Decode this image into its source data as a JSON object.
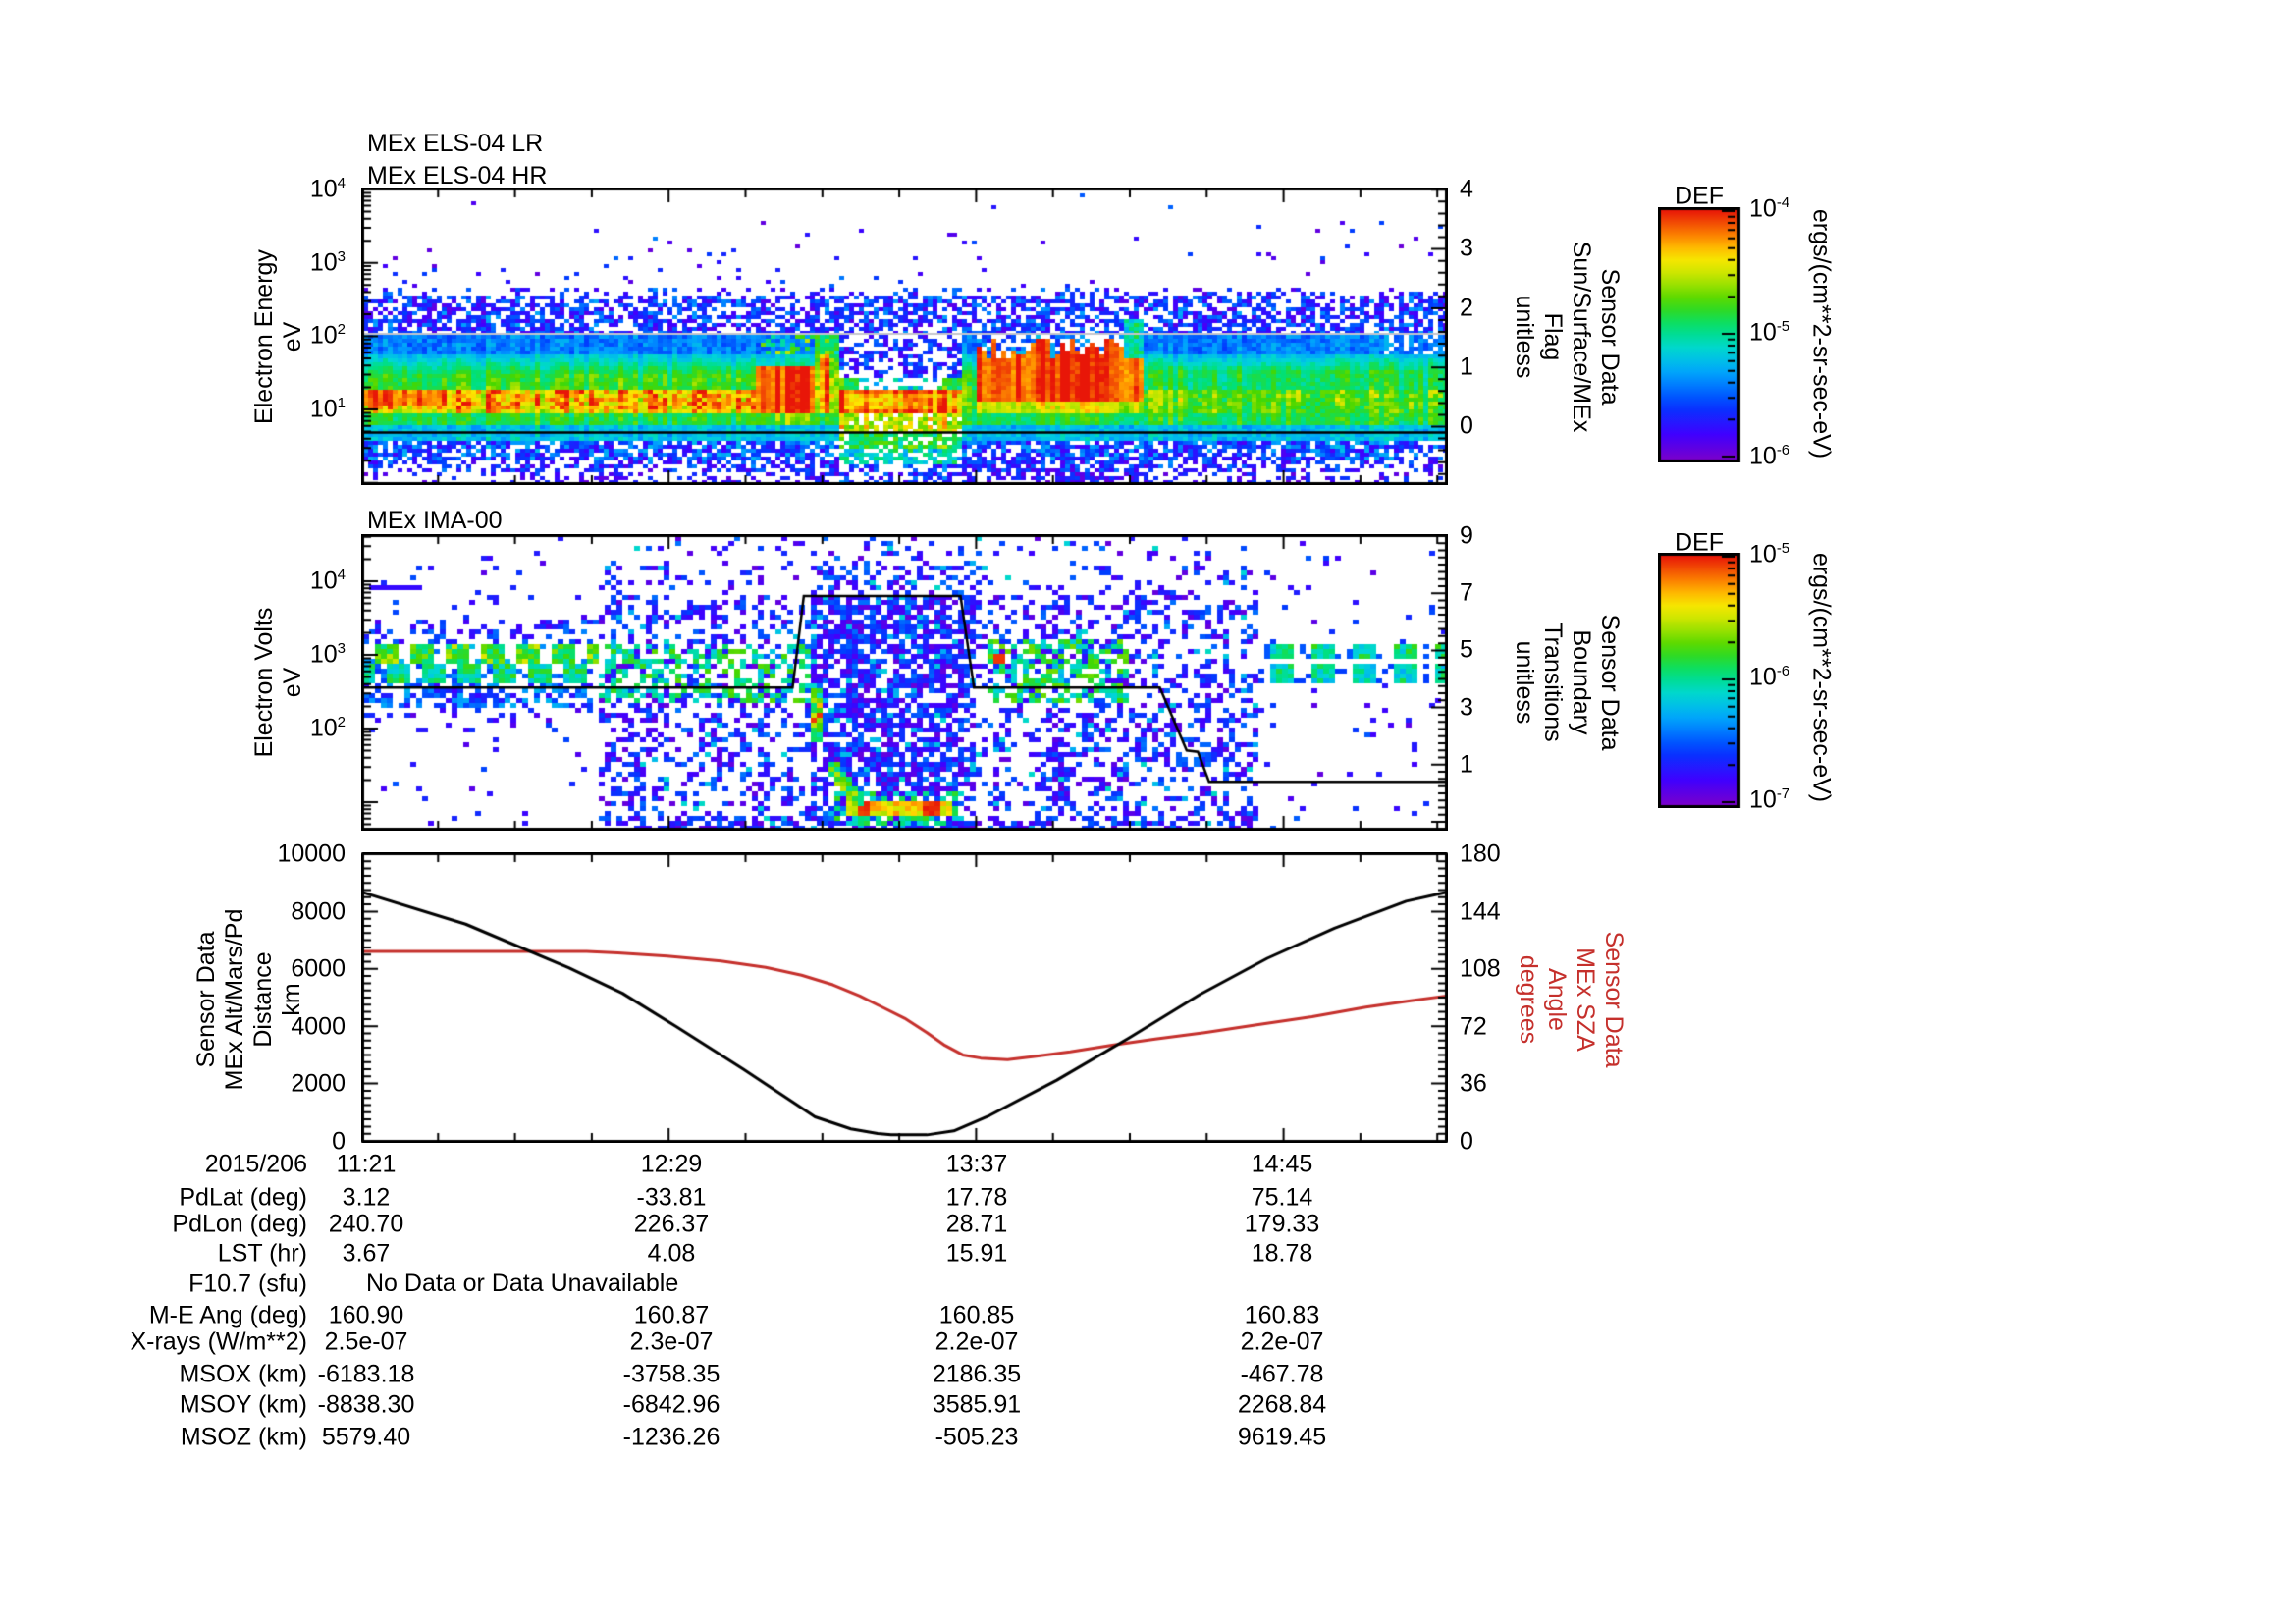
{
  "colors": {
    "accent_red": "#c5302c",
    "curve_black": "#000000",
    "grey_line": "#c4c4cc",
    "frame": "#000000"
  },
  "panels": {
    "els": {
      "titles": [
        "MEx ELS-04 LR",
        "MEx ELS-04 HR"
      ],
      "ylabel_lines": [
        "Electron Energy",
        "eV"
      ],
      "yticks": [
        {
          "b": "10",
          "e": "4"
        },
        {
          "b": "10",
          "e": "3"
        },
        {
          "b": "10",
          "e": "2"
        },
        {
          "b": "10",
          "e": "1"
        }
      ],
      "right_label_lines": [
        "Sensor Data",
        "Sun/Surface/MEx",
        "Flag",
        "unitless"
      ],
      "right_ticks": [
        "4",
        "3",
        "2",
        "1",
        "0"
      ]
    },
    "ima": {
      "title": "MEx IMA-00",
      "ylabel_lines": [
        "Electron Volts",
        "eV"
      ],
      "yticks": [
        {
          "b": "10",
          "e": "4"
        },
        {
          "b": "10",
          "e": "3"
        },
        {
          "b": "10",
          "e": "2"
        }
      ],
      "right_label_lines": [
        "Sensor Data",
        "Boundary",
        "Transitions",
        "unitless"
      ],
      "right_ticks": [
        "9",
        "7",
        "5",
        "3",
        "1"
      ]
    },
    "orbit": {
      "ylabel_lines": [
        "Sensor Data",
        "MEx Alt/Mars/Pd",
        "Distance",
        "km"
      ],
      "yticks": [
        "10000",
        "8000",
        "6000",
        "4000",
        "2000",
        "0"
      ],
      "right_label_lines": [
        "Sensor Data",
        "MEx SZA",
        "Angle",
        "degrees"
      ],
      "right_ticks": [
        "180",
        "144",
        "108",
        "72",
        "36",
        "0"
      ]
    }
  },
  "colorbars": [
    {
      "title": "DEF",
      "units": "ergs/(cm**2-sr-sec-eV)",
      "ticks": [
        {
          "b": "10",
          "e": "-4"
        },
        {
          "b": "10",
          "e": "-5"
        },
        {
          "b": "10",
          "e": "-6"
        }
      ]
    },
    {
      "title": "DEF",
      "units": "ergs/(cm**2-sr-sec-eV)",
      "ticks": [
        {
          "b": "10",
          "e": "-5"
        },
        {
          "b": "10",
          "e": "-6"
        },
        {
          "b": "10",
          "e": "-7"
        }
      ]
    }
  ],
  "xaxis": {
    "date": "2015/206",
    "time_labels": [
      "11:21",
      "12:29",
      "13:37",
      "14:45"
    ]
  },
  "table": {
    "no_data_text": "No Data or Data Unavailable",
    "rows": [
      {
        "label": "PdLat (deg)",
        "values": [
          "3.12",
          "-33.81",
          "17.78",
          "75.14"
        ]
      },
      {
        "label": "PdLon (deg)",
        "values": [
          "240.70",
          "226.37",
          "28.71",
          "179.33"
        ]
      },
      {
        "label": "LST (hr)",
        "values": [
          "3.67",
          "4.08",
          "15.91",
          "18.78"
        ]
      },
      {
        "label": "F10.7 (sfu)",
        "values": null
      },
      {
        "label": "M-E Ang (deg)",
        "values": [
          "160.90",
          "160.87",
          "160.85",
          "160.83"
        ]
      },
      {
        "label": "X-rays (W/m**2)",
        "values": [
          "2.5e-07",
          "2.3e-07",
          "2.2e-07",
          "2.2e-07"
        ]
      },
      {
        "label": "MSOX (km)",
        "values": [
          "-6183.18",
          "-3758.35",
          "2186.35",
          "-467.78"
        ]
      },
      {
        "label": "MSOY (km)",
        "values": [
          "-8838.30",
          "-6842.96",
          "3585.91",
          "2268.84"
        ]
      },
      {
        "label": "MSOZ (km)",
        "values": [
          "5579.40",
          "-1236.26",
          "-505.23",
          "9619.45"
        ]
      }
    ]
  },
  "chart_data": [
    {
      "type": "heatmap",
      "title": "MEx ELS-04 LR / MEx ELS-04 HR",
      "ylabel": "Electron Energy eV",
      "yscale": "log",
      "ylim": [
        1,
        10000
      ],
      "x_start": "11:21",
      "x_major_ticks": [
        "12:29",
        "13:37",
        "14:45"
      ],
      "x_span_minutes": 242,
      "colorbar": {
        "label": "DEF",
        "units": "ergs/(cm**2-sr-sec-eV)",
        "range": [
          1e-06,
          0.0001
        ]
      },
      "right_axis": {
        "label": "Sensor Data Sun/Surface/MEx Flag unitless",
        "ticks": [
          0,
          1,
          2,
          3,
          4
        ]
      },
      "flag_trace_minutes_value": [
        [
          0,
          -0.1
        ],
        [
          242,
          -0.1
        ]
      ],
      "notes": "Intense 10-100 eV electron band across orbit; red enhancements ~12:50 and 13:40-14:10; ionospheric band dip ~13:05-13:30"
    },
    {
      "type": "heatmap",
      "title": "MEx IMA-00",
      "ylabel": "Electron Volts eV",
      "yscale": "log",
      "ylim": [
        4.5,
        40000
      ],
      "x_start": "11:21",
      "x_major_ticks": [
        "12:29",
        "13:37",
        "14:45"
      ],
      "x_span_minutes": 242,
      "colorbar": {
        "label": "DEF",
        "units": "ergs/(cm**2-sr-sec-eV)",
        "range": [
          1e-07,
          1e-05
        ]
      },
      "right_axis": {
        "label": "Sensor Data Boundary Transitions unitless",
        "ticks": [
          1,
          3,
          5,
          7,
          9
        ]
      },
      "boundary_trace_minutes_value": [
        [
          0,
          3.7
        ],
        [
          96,
          3.7
        ],
        [
          98.5,
          6.9
        ],
        [
          133.5,
          6.9
        ],
        [
          136.5,
          3.7
        ],
        [
          178,
          3.7
        ],
        [
          184,
          1.5
        ],
        [
          186.5,
          1.45
        ],
        [
          189,
          0.4
        ],
        [
          242,
          0.4
        ]
      ],
      "notes": "Solar-wind ion stripes 0.3-1 keV at orbit start/end; dense plume of scattered counts mid-orbit; bright low-energy arc near periapsis"
    },
    {
      "type": "line",
      "x_unit": "minutes after 11:21 on 2015/206",
      "series": [
        {
          "name": "MEx Alt/Mars/Pd Distance (km)",
          "color": "#000000",
          "axis": "left",
          "ylim": [
            0,
            10000
          ],
          "points": [
            [
              0,
              8670
            ],
            [
              23,
              7560
            ],
            [
              46,
              6040
            ],
            [
              58,
              5150
            ],
            [
              70,
              3990
            ],
            [
              85,
              2500
            ],
            [
              101,
              840
            ],
            [
              109,
              420
            ],
            [
              115,
              260
            ],
            [
              118,
              215
            ],
            [
              126,
              210
            ],
            [
              132,
              350
            ],
            [
              140,
              890
            ],
            [
              155,
              2120
            ],
            [
              171,
              3580
            ],
            [
              187,
              5110
            ],
            [
              202,
              6370
            ],
            [
              217,
              7420
            ],
            [
              233,
              8360
            ],
            [
              242,
              8670
            ]
          ]
        },
        {
          "name": "MEx SZA Angle (degrees)",
          "color": "#c5302c",
          "axis": "right",
          "ylim": [
            0,
            180
          ],
          "points": [
            [
              0,
              119
            ],
            [
              50,
              119
            ],
            [
              57,
              118
            ],
            [
              68,
              116
            ],
            [
              80,
              113
            ],
            [
              90,
              109
            ],
            [
              98,
              104
            ],
            [
              105,
              98
            ],
            [
              111,
              91
            ],
            [
              116,
              84
            ],
            [
              121,
              77
            ],
            [
              126,
              68
            ],
            [
              130,
              60
            ],
            [
              134,
              54
            ],
            [
              138,
              52
            ],
            [
              144,
              51
            ],
            [
              150,
              53
            ],
            [
              158,
              56
            ],
            [
              167,
              60
            ],
            [
              177,
              64
            ],
            [
              188,
              68
            ],
            [
              200,
              73
            ],
            [
              212,
              78
            ],
            [
              224,
              84
            ],
            [
              234,
              88
            ],
            [
              242,
              91
            ]
          ]
        }
      ]
    }
  ]
}
